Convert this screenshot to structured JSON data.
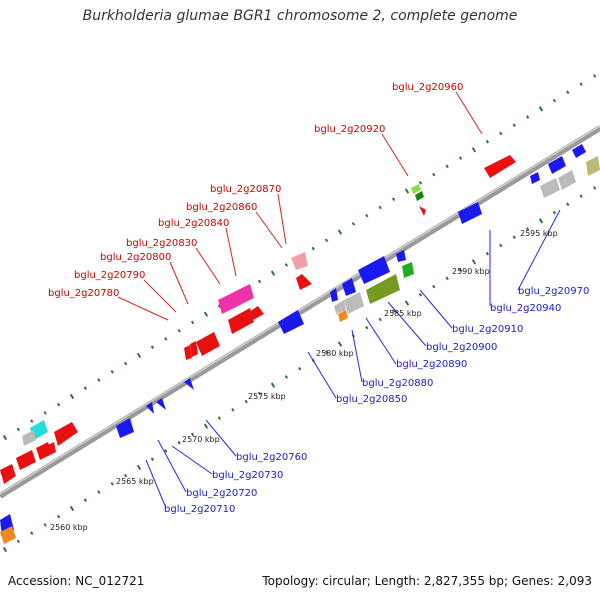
{
  "title": "Burkholderia glumae BGR1 chromosome 2, complete genome",
  "footer": {
    "accession": "Accession: NC_012721",
    "summary": "Topology: circular; Length: 2,827,355 bp; Genes: 2,093"
  },
  "colors": {
    "label_top": "#cc0000",
    "label_bottom": "#1a1acc",
    "leader_top": "#dd2222",
    "leader_bottom": "#2a2add",
    "dots": "#2a7a2a",
    "backbone": "#999999"
  },
  "kbp_ticks": [
    "2560 kbp",
    "2565 kbp",
    "2570 kbp",
    "2575 kbp",
    "2580 kbp",
    "2585 kbp",
    "2590 kbp",
    "2595 kbp"
  ],
  "top_labels": [
    "bglu_2g20960",
    "bglu_2g20920",
    "bglu_2g20870",
    "bglu_2g20860",
    "bglu_2g20840",
    "bglu_2g20830",
    "bglu_2g20800",
    "bglu_2g20790",
    "bglu_2g20780"
  ],
  "bottom_labels": [
    "bglu_2g20970",
    "bglu_2g20940",
    "bglu_2g20910",
    "bglu_2g20900",
    "bglu_2g20890",
    "bglu_2g20880",
    "bglu_2g20850",
    "bglu_2g20760",
    "bglu_2g20730",
    "bglu_2g20720",
    "bglu_2g20710"
  ]
}
